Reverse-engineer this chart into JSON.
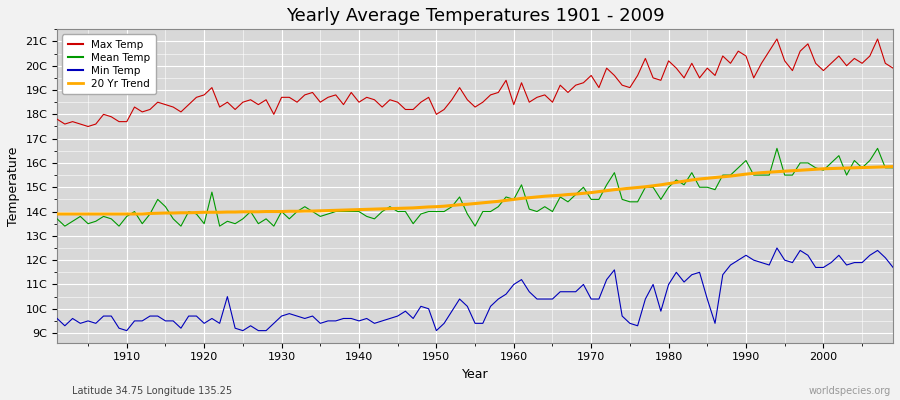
{
  "title": "Yearly Average Temperatures 1901 - 2009",
  "xlabel": "Year",
  "ylabel": "Temperature",
  "subtitle_left": "Latitude 34.75 Longitude 135.25",
  "subtitle_right": "worldspecies.org",
  "legend_labels": [
    "Max Temp",
    "Mean Temp",
    "Min Temp",
    "20 Yr Trend"
  ],
  "legend_colors": [
    "#cc0000",
    "#009900",
    "#0000bb",
    "#ffaa00"
  ],
  "line_colors": [
    "#cc0000",
    "#009900",
    "#0000bb",
    "#ffaa00"
  ],
  "bg_color": "#f0f0f0",
  "plot_bg_color": "#dcdcdc",
  "ytick_labels": [
    "9C",
    "10C",
    "11C",
    "12C",
    "13C",
    "14C",
    "15C",
    "16C",
    "17C",
    "18C",
    "19C",
    "20C",
    "21C"
  ],
  "ytick_values": [
    9,
    10,
    11,
    12,
    13,
    14,
    15,
    16,
    17,
    18,
    19,
    20,
    21
  ],
  "ylim": [
    8.6,
    21.5
  ],
  "xlim": [
    1901,
    2009
  ],
  "years": [
    1901,
    1902,
    1903,
    1904,
    1905,
    1906,
    1907,
    1908,
    1909,
    1910,
    1911,
    1912,
    1913,
    1914,
    1915,
    1916,
    1917,
    1918,
    1919,
    1920,
    1921,
    1922,
    1923,
    1924,
    1925,
    1926,
    1927,
    1928,
    1929,
    1930,
    1931,
    1932,
    1933,
    1934,
    1935,
    1936,
    1937,
    1938,
    1939,
    1940,
    1941,
    1942,
    1943,
    1944,
    1945,
    1946,
    1947,
    1948,
    1949,
    1950,
    1951,
    1952,
    1953,
    1954,
    1955,
    1956,
    1957,
    1958,
    1959,
    1960,
    1961,
    1962,
    1963,
    1964,
    1965,
    1966,
    1967,
    1968,
    1969,
    1970,
    1971,
    1972,
    1973,
    1974,
    1975,
    1976,
    1977,
    1978,
    1979,
    1980,
    1981,
    1982,
    1983,
    1984,
    1985,
    1986,
    1987,
    1988,
    1989,
    1990,
    1991,
    1992,
    1993,
    1994,
    1995,
    1996,
    1997,
    1998,
    1999,
    2000,
    2001,
    2002,
    2003,
    2004,
    2005,
    2006,
    2007,
    2008,
    2009
  ],
  "max_temp": [
    17.8,
    17.6,
    17.7,
    17.6,
    17.5,
    17.6,
    18.0,
    17.9,
    17.7,
    17.7,
    18.3,
    18.1,
    18.2,
    18.5,
    18.4,
    18.3,
    18.1,
    18.4,
    18.7,
    18.8,
    19.1,
    18.3,
    18.5,
    18.2,
    18.5,
    18.6,
    18.4,
    18.6,
    18.0,
    18.7,
    18.7,
    18.5,
    18.8,
    18.9,
    18.5,
    18.7,
    18.8,
    18.4,
    18.9,
    18.5,
    18.7,
    18.6,
    18.3,
    18.6,
    18.5,
    18.2,
    18.2,
    18.5,
    18.7,
    18.0,
    18.2,
    18.6,
    19.1,
    18.6,
    18.3,
    18.5,
    18.8,
    18.9,
    19.4,
    18.4,
    19.3,
    18.5,
    18.7,
    18.8,
    18.5,
    19.2,
    18.9,
    19.2,
    19.3,
    19.6,
    19.1,
    19.9,
    19.6,
    19.2,
    19.1,
    19.6,
    20.3,
    19.5,
    19.4,
    20.2,
    19.9,
    19.5,
    20.1,
    19.5,
    19.9,
    19.6,
    20.4,
    20.1,
    20.6,
    20.4,
    19.5,
    20.1,
    20.6,
    21.1,
    20.2,
    19.8,
    20.6,
    20.9,
    20.1,
    19.8,
    20.1,
    20.4,
    20.0,
    20.3,
    20.1,
    20.4,
    21.1,
    20.1,
    19.9
  ],
  "mean_temp": [
    13.7,
    13.4,
    13.6,
    13.8,
    13.5,
    13.6,
    13.8,
    13.7,
    13.4,
    13.8,
    14.0,
    13.5,
    13.9,
    14.5,
    14.2,
    13.7,
    13.4,
    14.0,
    13.9,
    13.5,
    14.8,
    13.4,
    13.6,
    13.5,
    13.7,
    14.0,
    13.5,
    13.7,
    13.4,
    14.0,
    13.7,
    14.0,
    14.2,
    14.0,
    13.8,
    13.9,
    14.0,
    14.0,
    14.0,
    14.0,
    13.8,
    13.7,
    14.0,
    14.2,
    14.0,
    14.0,
    13.5,
    13.9,
    14.0,
    14.0,
    14.0,
    14.2,
    14.6,
    13.9,
    13.4,
    14.0,
    14.0,
    14.2,
    14.6,
    14.5,
    15.1,
    14.1,
    14.0,
    14.2,
    14.0,
    14.6,
    14.4,
    14.7,
    15.0,
    14.5,
    14.5,
    15.1,
    15.6,
    14.5,
    14.4,
    14.4,
    15.0,
    15.0,
    14.5,
    15.0,
    15.3,
    15.1,
    15.6,
    15.0,
    15.0,
    14.9,
    15.5,
    15.5,
    15.8,
    16.1,
    15.5,
    15.5,
    15.5,
    16.6,
    15.5,
    15.5,
    16.0,
    16.0,
    15.8,
    15.7,
    16.0,
    16.3,
    15.5,
    16.1,
    15.8,
    16.1,
    16.6,
    15.8,
    15.8
  ],
  "min_temp": [
    9.6,
    9.3,
    9.6,
    9.4,
    9.5,
    9.4,
    9.7,
    9.7,
    9.2,
    9.1,
    9.5,
    9.5,
    9.7,
    9.7,
    9.5,
    9.5,
    9.2,
    9.7,
    9.7,
    9.4,
    9.6,
    9.4,
    10.5,
    9.2,
    9.1,
    9.3,
    9.1,
    9.1,
    9.4,
    9.7,
    9.8,
    9.7,
    9.6,
    9.7,
    9.4,
    9.5,
    9.5,
    9.6,
    9.6,
    9.5,
    9.6,
    9.4,
    9.5,
    9.6,
    9.7,
    9.9,
    9.6,
    10.1,
    10.0,
    9.1,
    9.4,
    9.9,
    10.4,
    10.1,
    9.4,
    9.4,
    10.1,
    10.4,
    10.6,
    11.0,
    11.2,
    10.7,
    10.4,
    10.4,
    10.4,
    10.7,
    10.7,
    10.7,
    11.0,
    10.4,
    10.4,
    11.2,
    11.6,
    9.7,
    9.4,
    9.3,
    10.4,
    11.0,
    9.9,
    11.0,
    11.5,
    11.1,
    11.4,
    11.5,
    10.4,
    9.4,
    11.4,
    11.8,
    12.0,
    12.2,
    12.0,
    11.9,
    11.8,
    12.5,
    12.0,
    11.9,
    12.4,
    12.2,
    11.7,
    11.7,
    11.9,
    12.2,
    11.8,
    11.9,
    11.9,
    12.2,
    12.4,
    12.1,
    11.7
  ],
  "trend_years": [
    1901,
    1902,
    1903,
    1904,
    1905,
    1906,
    1907,
    1908,
    1909,
    1910,
    1911,
    1912,
    1913,
    1914,
    1915,
    1916,
    1917,
    1918,
    1919,
    1920,
    1921,
    1922,
    1923,
    1924,
    1925,
    1926,
    1927,
    1928,
    1929,
    1930,
    1931,
    1932,
    1933,
    1934,
    1935,
    1936,
    1937,
    1938,
    1939,
    1940,
    1941,
    1942,
    1943,
    1944,
    1945,
    1946,
    1947,
    1948,
    1949,
    1950,
    1951,
    1952,
    1953,
    1954,
    1955,
    1956,
    1957,
    1958,
    1959,
    1960,
    1961,
    1962,
    1963,
    1964,
    1965,
    1966,
    1967,
    1968,
    1969,
    1970,
    1971,
    1972,
    1973,
    1974,
    1975,
    1976,
    1977,
    1978,
    1979,
    1980,
    1981,
    1982,
    1983,
    1984,
    1985,
    1986,
    1987,
    1988,
    1989,
    1990,
    1991,
    1992,
    1993,
    1994,
    1995,
    1996,
    1997,
    1998,
    1999,
    2000,
    2001,
    2002,
    2003,
    2004,
    2005,
    2006,
    2007,
    2008,
    2009
  ],
  "trend_values": [
    13.9,
    13.9,
    13.9,
    13.9,
    13.9,
    13.9,
    13.9,
    13.9,
    13.9,
    13.9,
    13.9,
    13.9,
    13.92,
    13.93,
    13.94,
    13.94,
    13.95,
    13.95,
    13.96,
    13.97,
    13.97,
    13.97,
    13.98,
    13.98,
    13.99,
    13.99,
    13.99,
    14.0,
    14.0,
    14.0,
    14.01,
    14.01,
    14.02,
    14.02,
    14.03,
    14.04,
    14.05,
    14.06,
    14.07,
    14.08,
    14.09,
    14.1,
    14.11,
    14.12,
    14.13,
    14.14,
    14.15,
    14.17,
    14.19,
    14.2,
    14.22,
    14.25,
    14.28,
    14.3,
    14.33,
    14.36,
    14.39,
    14.42,
    14.46,
    14.5,
    14.54,
    14.57,
    14.6,
    14.63,
    14.65,
    14.67,
    14.7,
    14.72,
    14.75,
    14.78,
    14.82,
    14.86,
    14.9,
    14.93,
    14.96,
    14.99,
    15.02,
    15.06,
    15.1,
    15.15,
    15.2,
    15.25,
    15.3,
    15.34,
    15.37,
    15.4,
    15.43,
    15.46,
    15.5,
    15.54,
    15.57,
    15.6,
    15.62,
    15.64,
    15.66,
    15.68,
    15.7,
    15.72,
    15.74,
    15.76,
    15.77,
    15.78,
    15.79,
    15.8,
    15.81,
    15.82,
    15.83,
    15.84,
    15.85
  ]
}
